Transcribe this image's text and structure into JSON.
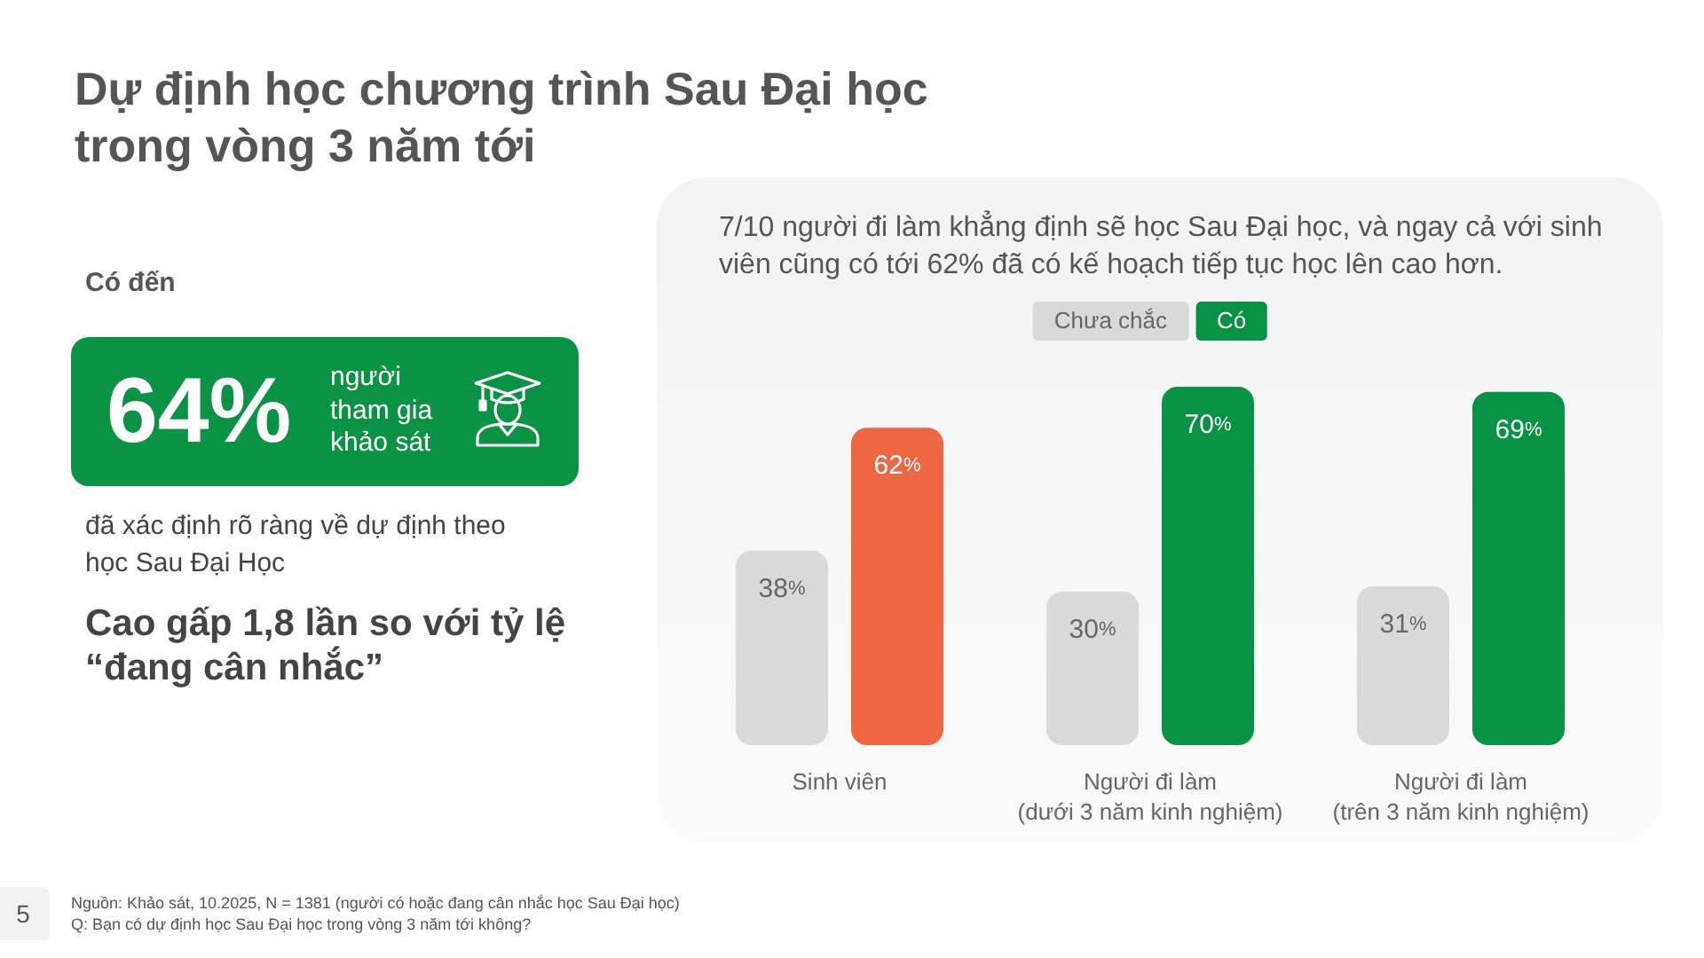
{
  "chart_data": {
    "type": "bar",
    "title": "Dự định học chương trình Sau Đại học trong vòng 3 năm tới",
    "subtitle": "7/10 người đi làm khẳng định sẽ học Sau Đại học, và ngay cả với sinh viên cũng có tới 62% đã có kế hoạch tiếp tục học lên cao hơn.",
    "categories": [
      "Sinh viên",
      "Người đi làm\n(dưới 3 năm kinh nghiệm)",
      "Người đi làm\n(trên 3 năm kinh nghiệm)"
    ],
    "series": [
      {
        "name": "Chưa chắc",
        "color": "#d9d9d9",
        "values": [
          38,
          30,
          31
        ],
        "value_labels": [
          "38%",
          "30%",
          "31%"
        ]
      },
      {
        "name": "Có",
        "color": "#079244",
        "colors": [
          "#ef6643",
          "#079244",
          "#079244"
        ],
        "values": [
          62,
          70,
          69
        ],
        "value_labels": [
          "62%",
          "70%",
          "69%"
        ]
      }
    ],
    "legend": "top",
    "tick_labels": "x",
    "annotations": [
      "Có đến",
      "64%",
      "người tham gia khảo sát",
      "đã xác định rõ ràng về dự định theo học Sau Đại Học",
      "Cao gấp 1,8 lần so với tỷ lệ “đang cân nhắc”",
      "Nguồn: Khảo sát, 10.2025, N = 1381 (người có hoặc đang cân nhắc học Sau Đại học)",
      "Q: Bạn có dự định học Sau Đại học trong vòng 3 năm tới không?",
      "5"
    ]
  }
}
